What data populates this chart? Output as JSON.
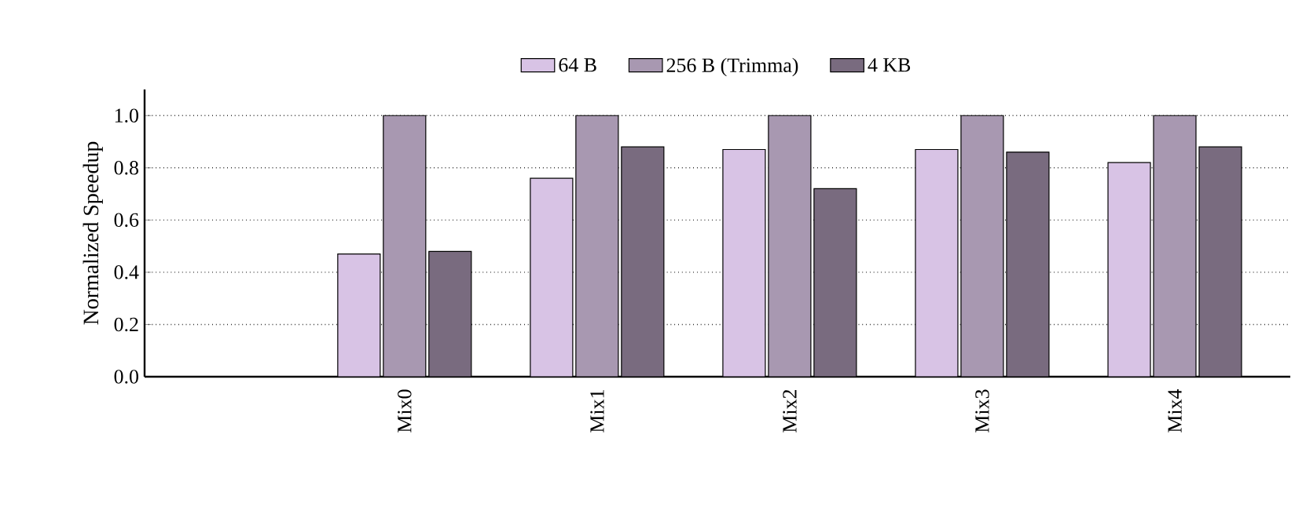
{
  "chart_data": {
    "type": "bar",
    "ylabel": "Normalized Speedup",
    "categories": [
      "Mix0",
      "Mix1",
      "Mix2",
      "Mix3",
      "Mix4"
    ],
    "series": [
      {
        "name": "64 B",
        "color": "#d8c3e5",
        "values": [
          0.47,
          0.76,
          0.87,
          0.87,
          0.82
        ]
      },
      {
        "name": "256 B (Trimma)",
        "color": "#a898b1",
        "values": [
          1.0,
          1.0,
          1.0,
          1.0,
          1.0
        ]
      },
      {
        "name": "4 KB",
        "color": "#796b7f",
        "values": [
          0.48,
          0.88,
          0.72,
          0.86,
          0.88
        ]
      }
    ],
    "ylim": [
      0,
      1.1
    ],
    "yticks": [
      {
        "value": 0,
        "label": "0.0"
      },
      {
        "value": 0.2,
        "label": "0.2"
      },
      {
        "value": 0.4,
        "label": "0.4"
      },
      {
        "value": 0.6,
        "label": "0.6"
      },
      {
        "value": 0.8,
        "label": "0.8"
      },
      {
        "value": 1.0,
        "label": "1.0"
      }
    ],
    "grid": "y",
    "legend": "top"
  }
}
